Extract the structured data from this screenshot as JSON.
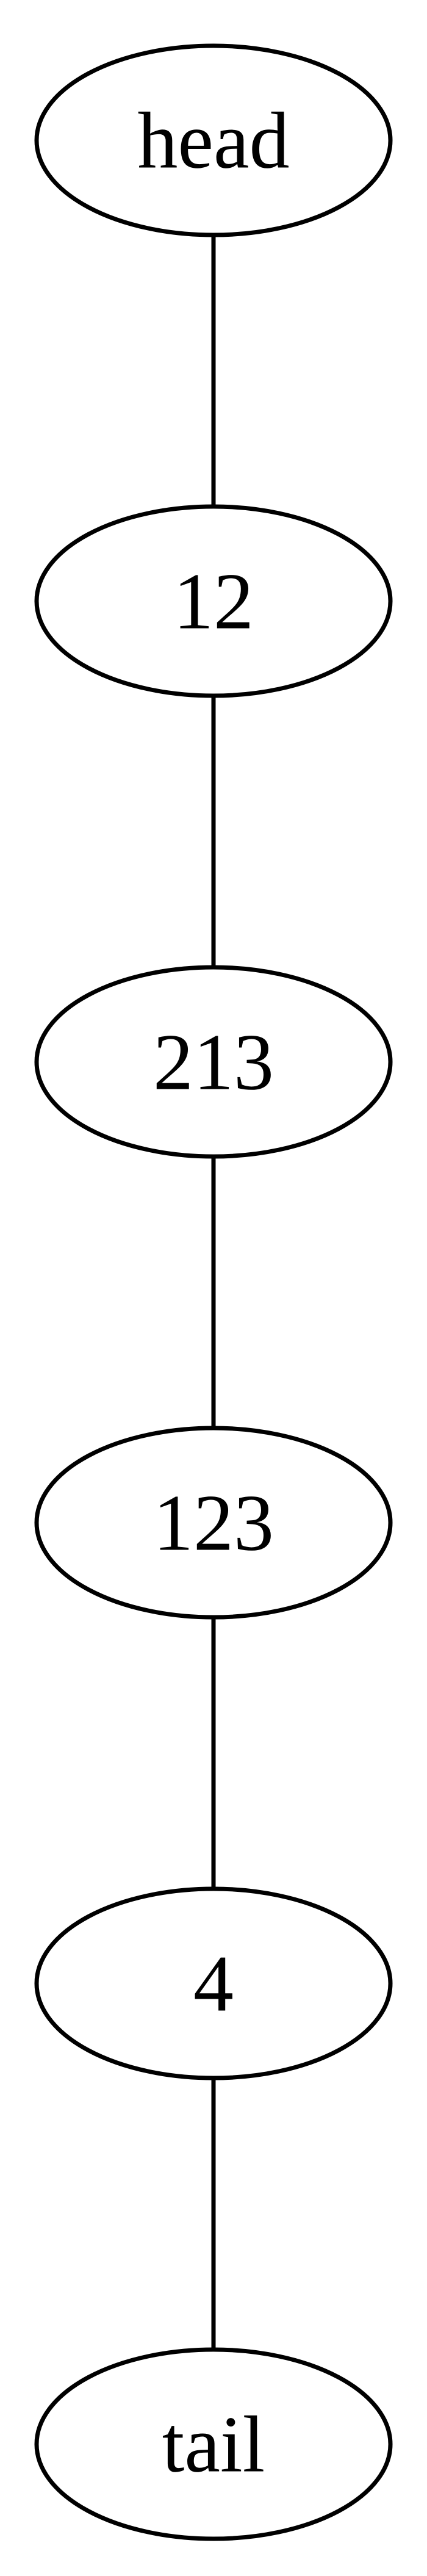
{
  "diagram": {
    "type": "linked-list",
    "nodes": [
      {
        "id": "head",
        "label": "head"
      },
      {
        "id": "n12",
        "label": "12"
      },
      {
        "id": "n213",
        "label": "213"
      },
      {
        "id": "n123",
        "label": "123"
      },
      {
        "id": "n4",
        "label": "4"
      },
      {
        "id": "tail",
        "label": "tail"
      }
    ],
    "edges": [
      {
        "from": "head",
        "to": "n12"
      },
      {
        "from": "n12",
        "to": "n213"
      },
      {
        "from": "n213",
        "to": "n123"
      },
      {
        "from": "n123",
        "to": "n4"
      },
      {
        "from": "n4",
        "to": "tail"
      }
    ],
    "colors": {
      "stroke": "#000000",
      "fill": "#ffffff",
      "text": "#000000"
    }
  }
}
